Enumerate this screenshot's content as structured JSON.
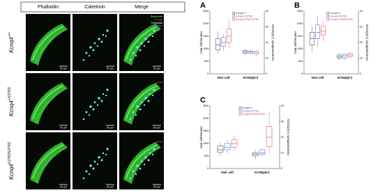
{
  "figure": {
    "column_headers": [
      "Phalloidin",
      "Calretinin",
      "Merge"
    ],
    "rows": [
      {
        "gene": "Kcnq4",
        "genotype": "+/+"
      },
      {
        "gene": "Kcnq4",
        "genotype": "+/V276S"
      },
      {
        "gene": "Kcnq4",
        "genotype": "V276S/V276S"
      }
    ],
    "merge_legend": [
      {
        "text": "Phalloidin",
        "color": "#39d13a"
      },
      {
        "text": "Kcnq4",
        "color": "#e03030"
      },
      {
        "text": "Calretinin",
        "color": "#5fe6f0"
      },
      {
        "text": "DAPI",
        "color": "#4060ff"
      }
    ],
    "scale_bar": "50 μm"
  },
  "panels": [
    {
      "label": "A",
      "y_label": "Hair cell/section",
      "y2_label": "KCNQ4(+) synapses/area",
      "categories": [
        "Hair cell",
        "KCNQ4(+)"
      ],
      "ylim": [
        0,
        2500
      ],
      "yticks": [
        0,
        500,
        1000,
        1500,
        2000,
        2500
      ],
      "y2lim": [
        0,
        40
      ],
      "y2ticks": [
        0,
        10,
        20,
        30,
        40
      ],
      "series": [
        {
          "name": "Kcnq4+/+",
          "color": "#333333",
          "boxes": [
            [
              800,
              950,
              1150,
              1400,
              1700
            ],
            [
              12,
              13,
              14,
              15,
              16
            ]
          ]
        },
        {
          "name": "Kcnq4+/V276S",
          "color": "#3a5fcd",
          "boxes": [
            [
              900,
              1100,
              1250,
              1450,
              1600
            ],
            [
              12,
              13,
              14,
              14.5,
              15.5
            ]
          ]
        },
        {
          "name": "Kcnq4V276S/V276S",
          "color": "#d04040",
          "boxes": [
            [
              1000,
              1250,
              1500,
              1800,
              2150
            ],
            [
              11,
              12.5,
              13.5,
              14.5,
              15
            ]
          ]
        }
      ]
    },
    {
      "label": "B",
      "y_label": "Hair cell/section",
      "y2_label": "KCNQ4(+) synapses/area",
      "categories": [
        "Hair cell",
        "KCNQ4(+)"
      ],
      "ylim": [
        0,
        2500
      ],
      "yticks": [
        0,
        500,
        1000,
        1500,
        2000,
        2500
      ],
      "y2lim": [
        0,
        40
      ],
      "y2ticks": [
        0,
        10,
        20,
        30,
        40
      ],
      "series": [
        {
          "name": "Kcnq4+/+",
          "color": "#333333",
          "boxes": [
            [
              900,
              1150,
              1400,
              1650,
              1900
            ],
            [
              9,
              10,
              11,
              12,
              13
            ]
          ]
        },
        {
          "name": "Kcnq4+/V276S",
          "color": "#3a5fcd",
          "boxes": [
            [
              1100,
              1400,
              1650,
              1950,
              2300
            ],
            [
              9,
              10,
              11.5,
              12.5,
              13
            ]
          ]
        },
        {
          "name": "Kcnq4V276S/V276S",
          "color": "#d04040",
          "boxes": [
            [
              1300,
              1550,
              1700,
              1900,
              2100
            ],
            [
              10,
              11,
              12,
              13,
              14
            ]
          ]
        }
      ]
    },
    {
      "label": "C",
      "y_label": "Hair cell/section",
      "y2_label": "KCNQ4(+) synapses/area",
      "categories": [
        "Hair cell",
        "KCNQ4(+)"
      ],
      "ylim": [
        0,
        2500
      ],
      "yticks": [
        0,
        500,
        1000,
        1500,
        2000,
        2500
      ],
      "y2lim": [
        0,
        40
      ],
      "y2ticks": [
        0,
        10,
        20,
        30,
        40
      ],
      "series": [
        {
          "name": "Kcnq4+/+",
          "color": "#333333",
          "boxes": [
            [
              500,
              650,
              750,
              900,
              1050
            ],
            [
              6,
              8,
              9,
              10,
              12
            ]
          ]
        },
        {
          "name": "Kcnq4+/V276S",
          "color": "#3a5fcd",
          "boxes": [
            [
              600,
              750,
              850,
              1000,
              1150
            ],
            [
              8,
              9,
              10,
              12,
              13
            ]
          ]
        },
        {
          "name": "Kcnq4V276S/V276S",
          "color": "#d04040",
          "boxes": [
            [
              700,
              850,
              1000,
              1150,
              1300
            ],
            [
              10,
              14,
              20,
              27,
              36
            ]
          ]
        }
      ]
    }
  ]
}
